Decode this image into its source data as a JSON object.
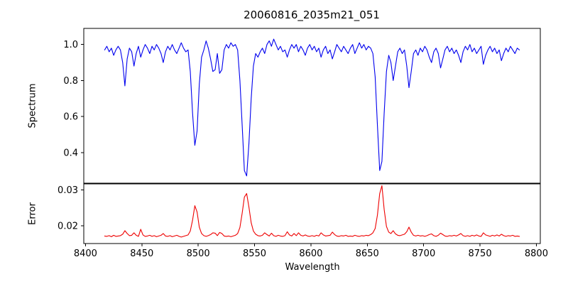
{
  "figure": {
    "title": "20060816_2035m21_051",
    "xlabel": "Wavelength",
    "ylabel_top": "Spectrum",
    "ylabel_bottom": "Error",
    "background_color": "#ffffff",
    "spine_color": "#000000",
    "spectrum_color": "#0000ee",
    "error_color": "#ee0000"
  },
  "chart_data": [
    {
      "type": "line",
      "title": "20060816_2035m21_051",
      "ylabel": "Spectrum",
      "series_name": "spectrum",
      "color": "#0000ee",
      "xlim": [
        8398.5,
        8803.5
      ],
      "ylim": [
        0.2296,
        1.0896
      ],
      "yticks": [
        0.4,
        0.6,
        0.8,
        1.0
      ],
      "ytick_labels": [
        "0.4",
        "0.6",
        "0.8",
        "1.0"
      ],
      "grid": false,
      "x_start": 8417,
      "x_step": 2,
      "absorption_line_centers": [
        8435,
        8443,
        8498,
        8514,
        8520,
        8542,
        8662,
        8674,
        8688
      ],
      "y": [
        0.97,
        0.99,
        0.96,
        0.98,
        0.94,
        0.97,
        0.99,
        0.97,
        0.9,
        0.77,
        0.92,
        0.98,
        0.96,
        0.88,
        0.95,
        0.99,
        0.93,
        0.97,
        1.0,
        0.98,
        0.95,
        0.99,
        0.97,
        1.0,
        0.98,
        0.95,
        0.9,
        0.96,
        0.99,
        0.97,
        1.0,
        0.97,
        0.95,
        0.98,
        1.01,
        0.98,
        0.96,
        0.97,
        0.85,
        0.62,
        0.44,
        0.52,
        0.78,
        0.93,
        0.97,
        1.02,
        0.98,
        0.92,
        0.85,
        0.86,
        0.95,
        0.84,
        0.86,
        0.97,
        1.0,
        0.98,
        1.01,
        0.99,
        1.0,
        0.97,
        0.8,
        0.55,
        0.3,
        0.27,
        0.45,
        0.7,
        0.88,
        0.95,
        0.93,
        0.96,
        0.98,
        0.95,
        1.0,
        1.02,
        0.99,
        1.03,
        1.0,
        0.97,
        0.99,
        0.96,
        0.97,
        0.93,
        0.97,
        1.0,
        0.98,
        1.0,
        0.96,
        0.99,
        0.97,
        0.94,
        0.98,
        1.0,
        0.97,
        0.99,
        0.96,
        0.98,
        0.93,
        0.97,
        0.99,
        0.95,
        0.97,
        0.92,
        0.96,
        1.0,
        0.98,
        0.96,
        0.99,
        0.97,
        0.95,
        0.98,
        1.0,
        0.95,
        0.98,
        1.01,
        0.98,
        1.0,
        0.97,
        0.99,
        0.98,
        0.95,
        0.82,
        0.55,
        0.3,
        0.35,
        0.62,
        0.85,
        0.94,
        0.9,
        0.8,
        0.88,
        0.96,
        0.98,
        0.95,
        0.97,
        0.88,
        0.76,
        0.85,
        0.95,
        0.97,
        0.94,
        0.98,
        0.96,
        0.99,
        0.97,
        0.93,
        0.9,
        0.96,
        0.98,
        0.95,
        0.87,
        0.92,
        0.97,
        0.99,
        0.96,
        0.98,
        0.95,
        0.97,
        0.94,
        0.9,
        0.96,
        0.99,
        0.97,
        1.0,
        0.96,
        0.98,
        0.95,
        0.97,
        0.99,
        0.89,
        0.94,
        0.97,
        0.99,
        0.96,
        0.98,
        0.95,
        0.97,
        0.91,
        0.95,
        0.98,
        0.96,
        0.99,
        0.97,
        0.95,
        0.98,
        0.97
      ]
    },
    {
      "type": "line",
      "ylabel": "Error",
      "xlabel": "Wavelength",
      "series_name": "error",
      "color": "#ee0000",
      "xlim": [
        8398.5,
        8803.5
      ],
      "ylim": [
        0.015,
        0.0317
      ],
      "yticks": [
        0.02,
        0.03
      ],
      "ytick_labels": [
        "0.02",
        "0.03"
      ],
      "xticks": [
        8400,
        8450,
        8500,
        8550,
        8600,
        8650,
        8700,
        8750,
        8800
      ],
      "xtick_labels": [
        "8400",
        "8450",
        "8500",
        "8550",
        "8600",
        "8650",
        "8700",
        "8750",
        "8800"
      ],
      "grid": false,
      "x_start": 8417,
      "x_step": 2,
      "error_peak_centers": [
        8498,
        8542,
        8662
      ],
      "y": [
        0.0171,
        0.017,
        0.0172,
        0.0169,
        0.0173,
        0.017,
        0.0171,
        0.0172,
        0.0176,
        0.0186,
        0.0178,
        0.0172,
        0.0173,
        0.018,
        0.0173,
        0.017,
        0.019,
        0.0174,
        0.017,
        0.0171,
        0.0173,
        0.017,
        0.0172,
        0.0169,
        0.0171,
        0.0173,
        0.0178,
        0.0171,
        0.017,
        0.0172,
        0.0169,
        0.0171,
        0.0173,
        0.017,
        0.0168,
        0.017,
        0.0172,
        0.0174,
        0.0185,
        0.0215,
        0.0256,
        0.0238,
        0.0196,
        0.0178,
        0.0172,
        0.017,
        0.0172,
        0.0175,
        0.018,
        0.0179,
        0.0172,
        0.0181,
        0.0178,
        0.0171,
        0.017,
        0.0171,
        0.0169,
        0.0171,
        0.0173,
        0.0178,
        0.0195,
        0.0235,
        0.028,
        0.029,
        0.0252,
        0.0208,
        0.0185,
        0.0176,
        0.0172,
        0.0171,
        0.0173,
        0.018,
        0.0175,
        0.0171,
        0.0179,
        0.0172,
        0.017,
        0.0173,
        0.0171,
        0.017,
        0.0172,
        0.0183,
        0.0174,
        0.0171,
        0.0178,
        0.0172,
        0.018,
        0.0173,
        0.0171,
        0.0174,
        0.0171,
        0.017,
        0.0172,
        0.017,
        0.0173,
        0.0171,
        0.018,
        0.0174,
        0.0171,
        0.0172,
        0.0173,
        0.0182,
        0.0175,
        0.0171,
        0.017,
        0.0172,
        0.0171,
        0.0173,
        0.017,
        0.0171,
        0.017,
        0.0173,
        0.0171,
        0.017,
        0.0172,
        0.0171,
        0.0173,
        0.0172,
        0.0175,
        0.018,
        0.0192,
        0.023,
        0.029,
        0.0312,
        0.0245,
        0.0198,
        0.0182,
        0.0178,
        0.0186,
        0.0177,
        0.0173,
        0.0172,
        0.0174,
        0.0176,
        0.0183,
        0.0196,
        0.0182,
        0.0173,
        0.0171,
        0.0173,
        0.0171,
        0.0172,
        0.017,
        0.0172,
        0.0175,
        0.0177,
        0.0172,
        0.017,
        0.0173,
        0.0179,
        0.0175,
        0.0171,
        0.017,
        0.0172,
        0.0171,
        0.0173,
        0.0171,
        0.0174,
        0.0178,
        0.0172,
        0.017,
        0.0172,
        0.017,
        0.0173,
        0.0171,
        0.0174,
        0.0171,
        0.017,
        0.018,
        0.0174,
        0.0172,
        0.017,
        0.0173,
        0.0171,
        0.0174,
        0.0171,
        0.0176,
        0.0172,
        0.017,
        0.0172,
        0.0171,
        0.0173,
        0.017,
        0.0171,
        0.017
      ]
    }
  ]
}
